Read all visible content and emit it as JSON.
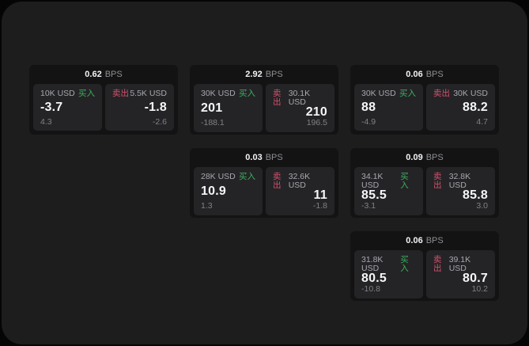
{
  "labels": {
    "bps_unit": "BPS",
    "buy": "买入",
    "sell": "卖出"
  },
  "colors": {
    "buy_green": "#3cb05a",
    "sell_red": "#d5506b",
    "page_bg": "#1d1d1e",
    "card_bg": "#131314",
    "panel_bg": "#242427"
  },
  "cards": [
    {
      "bps": "0.62",
      "buy": {
        "amount": "10K USD",
        "price": "-3.7",
        "delta": "4.3"
      },
      "sell": {
        "amount": "5.5K USD",
        "price": "-1.8",
        "delta": "-2.6"
      }
    },
    {
      "bps": "2.92",
      "buy": {
        "amount": "30K USD",
        "price": "201",
        "delta": "-188.1"
      },
      "sell": {
        "amount": "30.1K USD",
        "price": "210",
        "delta": "196.5"
      }
    },
    {
      "bps": "0.06",
      "buy": {
        "amount": "30K USD",
        "price": "88",
        "delta": "-4.9"
      },
      "sell": {
        "amount": "30K USD",
        "price": "88.2",
        "delta": "4.7"
      }
    },
    {
      "bps": "0.03",
      "buy": {
        "amount": "28K USD",
        "price": "10.9",
        "delta": "1.3"
      },
      "sell": {
        "amount": "32.6K USD",
        "price": "11",
        "delta": "-1.8"
      }
    },
    {
      "bps": "0.09",
      "buy": {
        "amount": "34.1K USD",
        "price": "85.5",
        "delta": "-3.1"
      },
      "sell": {
        "amount": "32.8K USD",
        "price": "85.8",
        "delta": "3.0"
      }
    },
    {
      "bps": "0.06",
      "buy": {
        "amount": "31.8K USD",
        "price": "80.5",
        "delta": "-10.8"
      },
      "sell": {
        "amount": "39.1K USD",
        "price": "80.7",
        "delta": "10.2"
      }
    }
  ]
}
